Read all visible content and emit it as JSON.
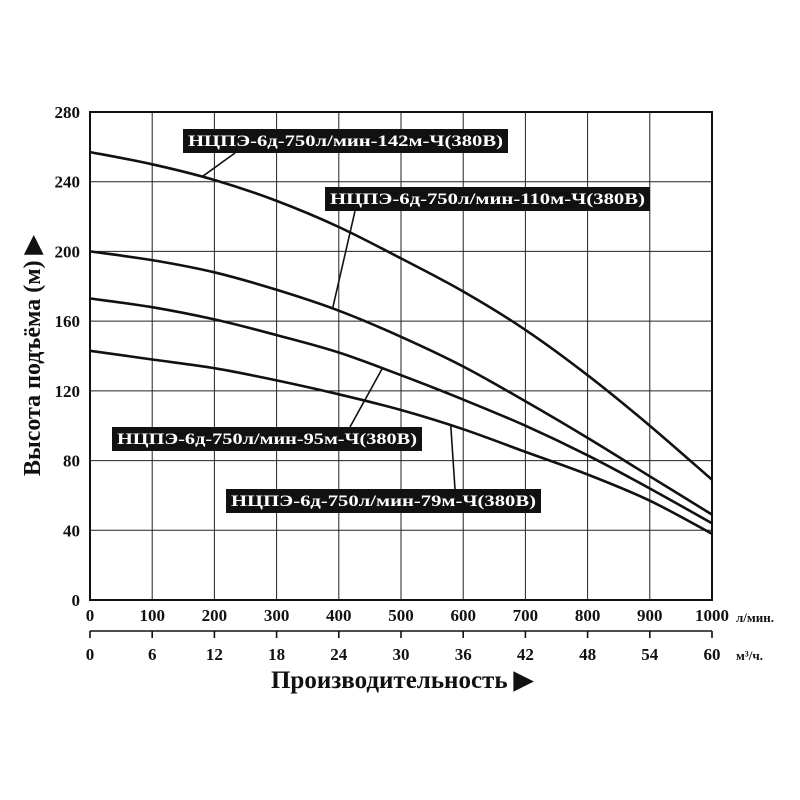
{
  "chart_data": {
    "type": "line",
    "ylabel": "Высота подъёма (м) ▶",
    "xlabel": "Производительность ▶",
    "x_unit_primary": "л/мин.",
    "x_unit_secondary": "м³/ч.",
    "x_ticks_primary": [
      "0",
      "100",
      "200",
      "300",
      "400",
      "500",
      "600",
      "700",
      "800",
      "900",
      "1000"
    ],
    "x_ticks_secondary": [
      "0",
      "6",
      "12",
      "18",
      "24",
      "30",
      "36",
      "42",
      "48",
      "54",
      "60"
    ],
    "y_ticks": [
      "0",
      "40",
      "80",
      "120",
      "160",
      "200",
      "240",
      "280"
    ],
    "xlim": [
      0,
      1000
    ],
    "ylim": [
      0,
      280
    ],
    "grid": true,
    "series": [
      {
        "name": "НЦПЭ-6д-750л/мин-142м-Ч(380В)",
        "x": [
          0,
          100,
          200,
          300,
          400,
          500,
          600,
          700,
          800,
          900,
          1000
        ],
        "values": [
          257,
          250,
          241,
          229,
          214,
          196,
          177,
          155,
          129,
          100,
          69
        ]
      },
      {
        "name": "НЦПЭ-6д-750л/мин-110м-Ч(380В)",
        "x": [
          0,
          100,
          200,
          300,
          400,
          500,
          600,
          700,
          800,
          900,
          1000
        ],
        "values": [
          200,
          195,
          188,
          178,
          166,
          151,
          134,
          114,
          93,
          71,
          49
        ]
      },
      {
        "name": "НЦПЭ-6д-750л/мин-95м-Ч(380В)",
        "x": [
          0,
          100,
          200,
          300,
          400,
          500,
          600,
          700,
          800,
          900,
          1000
        ],
        "values": [
          173,
          168,
          161,
          152,
          142,
          129,
          115,
          100,
          83,
          64,
          44
        ]
      },
      {
        "name": "НЦПЭ-6д-750л/мин-79м-Ч(380В)",
        "x": [
          0,
          100,
          200,
          300,
          400,
          500,
          600,
          700,
          800,
          900,
          1000
        ],
        "values": [
          143,
          138,
          133,
          126,
          118,
          109,
          98,
          85,
          72,
          57,
          38
        ]
      }
    ]
  }
}
